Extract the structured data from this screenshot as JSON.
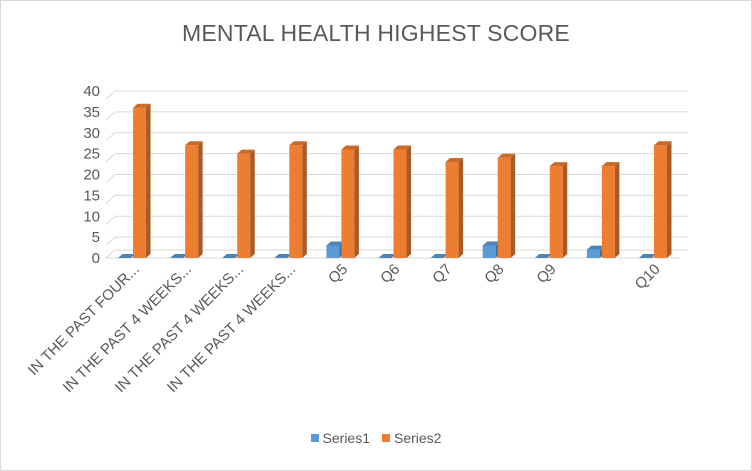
{
  "chart_data": {
    "type": "bar",
    "title": "MENTAL HEALTH HIGHEST SCORE",
    "xlabel": "",
    "ylabel": "",
    "ylim": [
      0,
      40
    ],
    "yticks": [
      0,
      5,
      10,
      15,
      20,
      25,
      30,
      35,
      40
    ],
    "grid": true,
    "legend_position": "bottom",
    "categories": [
      "IN THE PAST FOUR...",
      "IN THE PAST 4 WEEKS...",
      "IN THE PAST 4 WEEKS...",
      "IN THE PAST 4 WEEKS...",
      "Q5",
      "Q6",
      "Q7",
      "Q8",
      "Q9",
      "",
      "Q10"
    ],
    "series": [
      {
        "name": "Series1",
        "color": "#5b9bd5",
        "values": [
          0,
          0,
          0,
          0,
          3,
          0,
          0,
          3,
          0,
          2,
          0
        ]
      },
      {
        "name": "Series2",
        "color": "#ed7d31",
        "values": [
          36,
          27,
          25,
          27,
          26,
          26,
          23,
          24,
          22,
          22,
          27
        ]
      }
    ]
  }
}
